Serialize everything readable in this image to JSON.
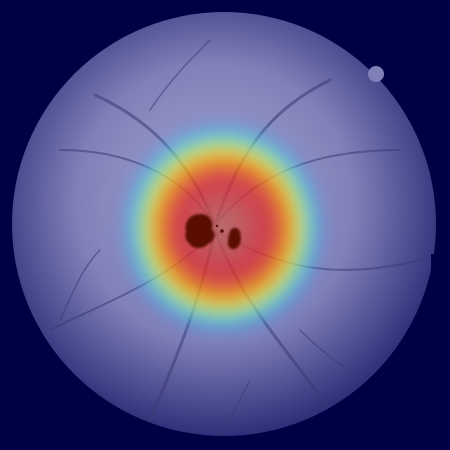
{
  "image": {
    "subject": "retinal-fundus-heatmap-overlay",
    "colors": {
      "background": "#000045",
      "fundus_edge": "#2f2f7a",
      "fundus_mid": "#7f80b7",
      "fundus_center": "#a9a9d0",
      "heat_blue": "#4a60ff",
      "heat_cyan": "#32d0ff",
      "heat_green": "#6aff6a",
      "heat_yellow": "#ffe600",
      "heat_orange": "#ff8000",
      "heat_red": "#e21e24",
      "heat_core": "#b46a62",
      "optic_cup": "#5a0c06",
      "vessel": "#3b3b74"
    }
  }
}
